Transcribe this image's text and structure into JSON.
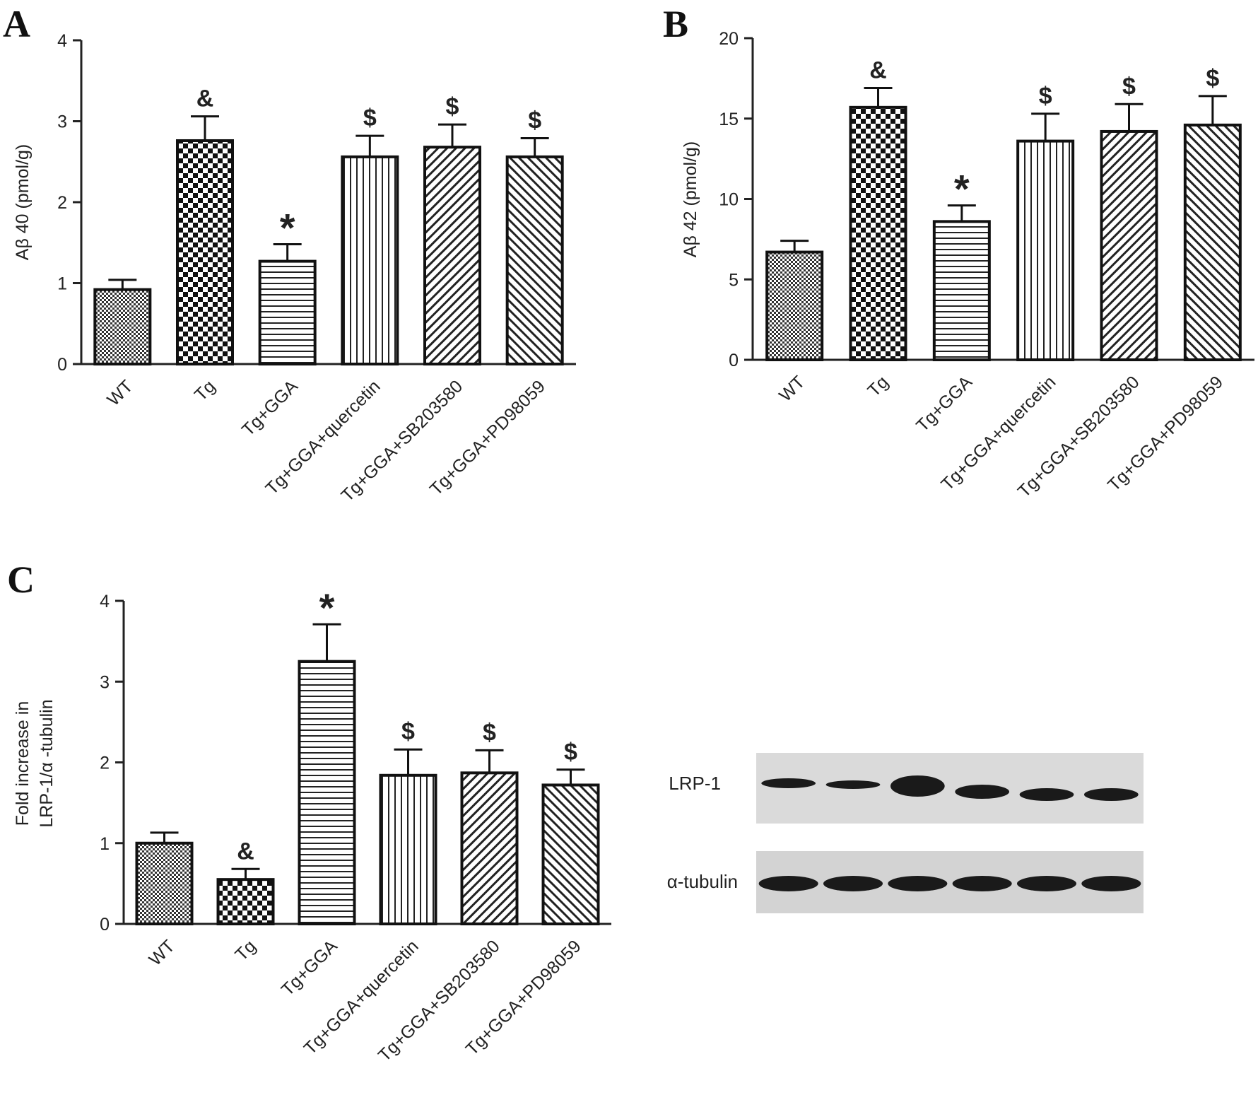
{
  "colors": {
    "ink": "#222222",
    "bar_stroke": "#111111",
    "background": "#ffffff",
    "blot_bg": "#d9d9d9",
    "band": "#1a1a1a"
  },
  "bar_patterns": [
    "fine-grid",
    "checker",
    "horizontal-lines",
    "vertical-lines",
    "diagonal-lines",
    "diagonal-lines-reverse"
  ],
  "chart_data": [
    {
      "panel": "A",
      "type": "bar",
      "categories": [
        "WT",
        "Tg",
        "Tg+GGA",
        "Tg+GGA+quercetin",
        "Tg+GGA+SB203580",
        "Tg+GGA+PD98059"
      ],
      "values": [
        0.92,
        2.76,
        1.27,
        2.56,
        2.68,
        2.56
      ],
      "errors": [
        0.12,
        0.3,
        0.21,
        0.26,
        0.28,
        0.23
      ],
      "significance": [
        "",
        "&",
        "*",
        "$",
        "$",
        "$"
      ],
      "ylabel": "Aβ 40 (pmol/g)",
      "ylim": [
        0,
        4
      ],
      "yticks": [
        "0",
        "1",
        "2",
        "3",
        "4"
      ],
      "ytick_values": [
        0,
        1,
        2,
        3,
        4
      ]
    },
    {
      "panel": "B",
      "type": "bar",
      "categories": [
        "WT",
        "Tg",
        "Tg+GGA",
        "Tg+GGA+quercetin",
        "Tg+GGA+SB203580",
        "Tg+GGA+PD98059"
      ],
      "values": [
        6.7,
        15.7,
        8.6,
        13.6,
        14.2,
        14.6
      ],
      "errors": [
        0.7,
        1.2,
        1.0,
        1.7,
        1.7,
        1.8
      ],
      "significance": [
        "",
        "&",
        "*",
        "$",
        "$",
        "$"
      ],
      "ylabel": "Aβ 42 (pmol/g)",
      "ylim": [
        0,
        20
      ],
      "yticks": [
        "0",
        "5",
        "10",
        "15",
        "20"
      ],
      "ytick_values": [
        0,
        5,
        10,
        15,
        20
      ]
    },
    {
      "panel": "C",
      "type": "bar",
      "categories": [
        "WT",
        "Tg",
        "Tg+GGA",
        "Tg+GGA+quercetin",
        "Tg+GGA+SB203580",
        "Tg+GGA+PD98059"
      ],
      "values": [
        1.0,
        0.55,
        3.25,
        1.84,
        1.87,
        1.72
      ],
      "errors": [
        0.13,
        0.13,
        0.46,
        0.32,
        0.28,
        0.19
      ],
      "significance": [
        "",
        "&",
        "*",
        "$",
        "$",
        "$"
      ],
      "ylabel_lines": [
        "Fold increase in",
        "LRP-1/α -tubulin"
      ],
      "ylim": [
        0,
        4
      ],
      "yticks": [
        "0",
        "1",
        "2",
        "3",
        "4"
      ],
      "ytick_values": [
        0,
        1,
        2,
        3,
        4
      ]
    }
  ],
  "blot": {
    "labels": [
      "LRP-1",
      "α-tubulin"
    ],
    "lanes": 6
  }
}
